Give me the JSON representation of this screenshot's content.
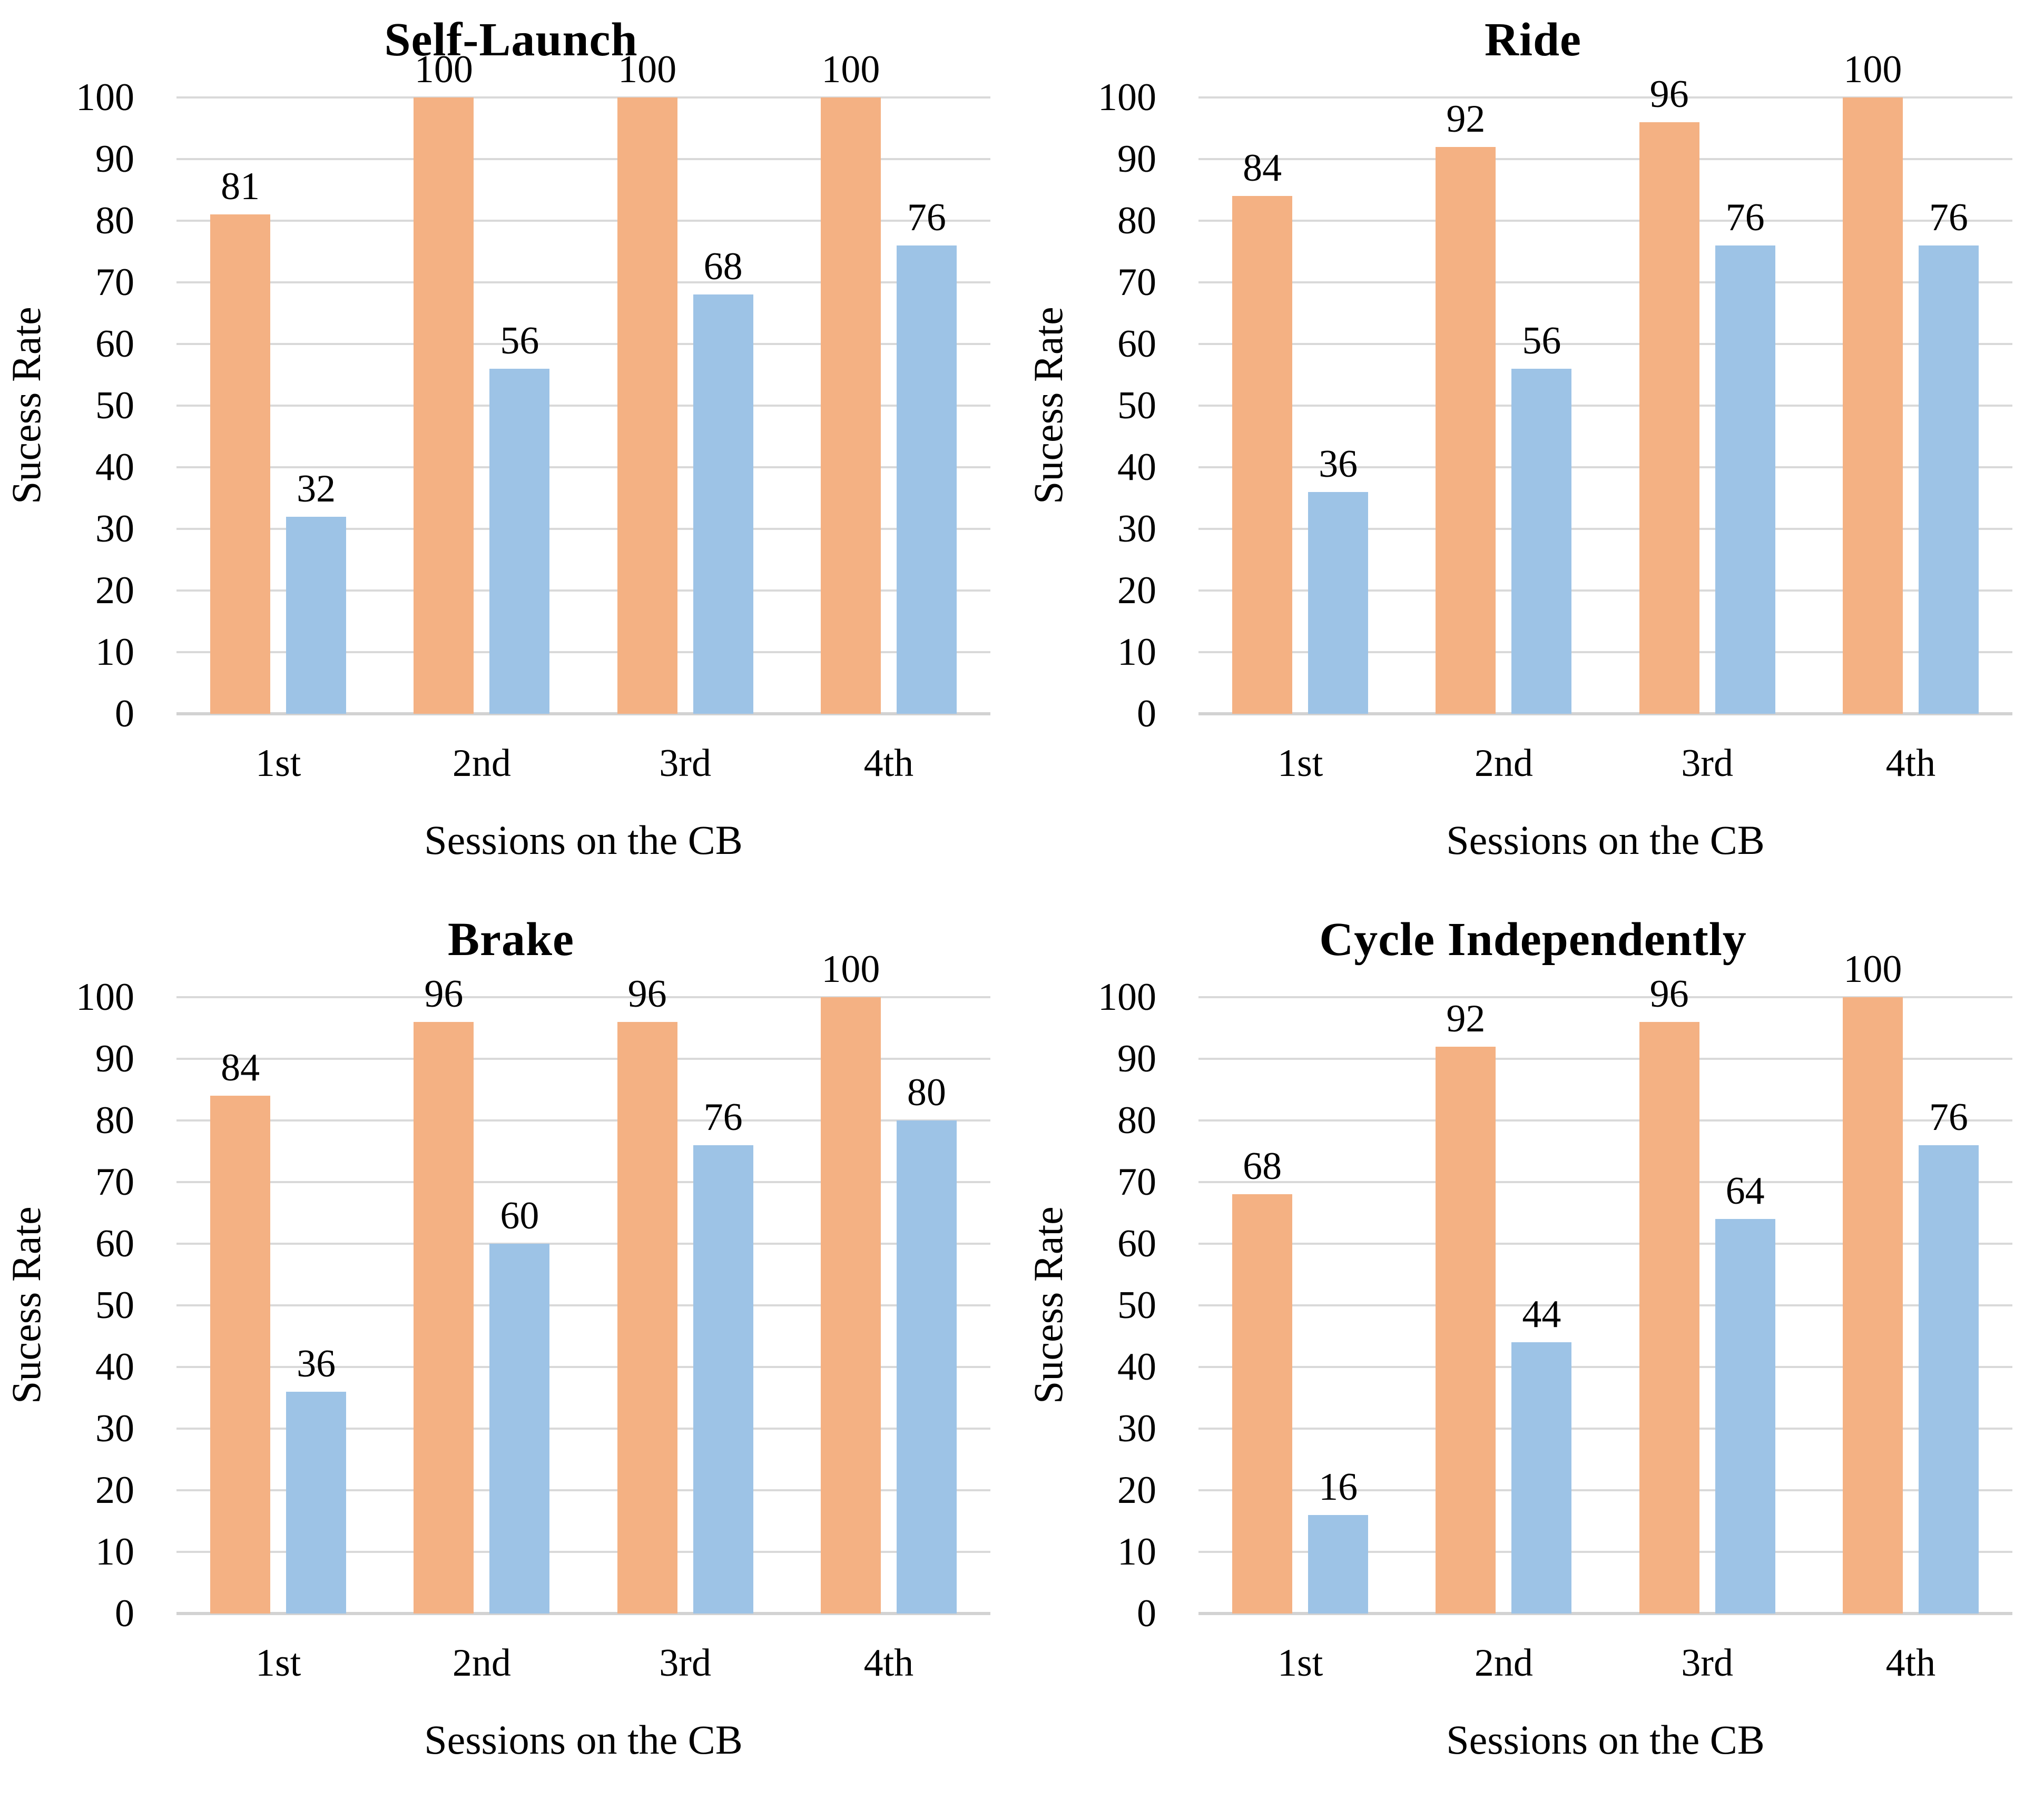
{
  "figure": {
    "background": "#FFFFFF",
    "panels": 4,
    "layout": "2x2-grid"
  },
  "colors": {
    "orange_series": "#F4B183",
    "blue_series": "#9DC3E6",
    "gridline": "#D9D9D9",
    "axis_line": "#D2D2D2",
    "text": "#000000"
  },
  "chart_data": [
    {
      "type": "bar",
      "title": "Self-Launch",
      "categories": [
        "1st",
        "2nd",
        "3rd",
        "4th"
      ],
      "series": [
        {
          "name": "orange",
          "color": "#F4B183",
          "values": [
            81,
            100,
            100,
            100
          ]
        },
        {
          "name": "blue",
          "color": "#9DC3E6",
          "values": [
            32,
            56,
            68,
            76
          ]
        }
      ],
      "xlabel": "Sessions on the CB",
      "ylabel": "Sucess Rate",
      "ylim": [
        0,
        100
      ],
      "yticks": [
        0,
        10,
        20,
        30,
        40,
        50,
        60,
        70,
        80,
        90,
        100
      ],
      "grid": true,
      "legend": "none",
      "data_labels": true
    },
    {
      "type": "bar",
      "title": "Ride",
      "categories": [
        "1st",
        "2nd",
        "3rd",
        "4th"
      ],
      "series": [
        {
          "name": "orange",
          "color": "#F4B183",
          "values": [
            84,
            92,
            96,
            100
          ]
        },
        {
          "name": "blue",
          "color": "#9DC3E6",
          "values": [
            36,
            56,
            76,
            76
          ]
        }
      ],
      "xlabel": "Sessions on the CB",
      "ylabel": "Sucess Rate",
      "ylim": [
        0,
        100
      ],
      "yticks": [
        0,
        10,
        20,
        30,
        40,
        50,
        60,
        70,
        80,
        90,
        100
      ],
      "grid": true,
      "legend": "none",
      "data_labels": true
    },
    {
      "type": "bar",
      "title": "Brake",
      "categories": [
        "1st",
        "2nd",
        "3rd",
        "4th"
      ],
      "series": [
        {
          "name": "orange",
          "color": "#F4B183",
          "values": [
            84,
            96,
            96,
            100
          ]
        },
        {
          "name": "blue",
          "color": "#9DC3E6",
          "values": [
            36,
            60,
            76,
            80
          ]
        }
      ],
      "xlabel": "Sessions on the CB",
      "ylabel": "Sucess Rate",
      "ylim": [
        0,
        100
      ],
      "yticks": [
        0,
        10,
        20,
        30,
        40,
        50,
        60,
        70,
        80,
        90,
        100
      ],
      "grid": true,
      "legend": "none",
      "data_labels": true
    },
    {
      "type": "bar",
      "title": "Cycle Independently",
      "categories": [
        "1st",
        "2nd",
        "3rd",
        "4th"
      ],
      "series": [
        {
          "name": "orange",
          "color": "#F4B183",
          "values": [
            68,
            92,
            96,
            100
          ]
        },
        {
          "name": "blue",
          "color": "#9DC3E6",
          "values": [
            16,
            44,
            64,
            76
          ]
        }
      ],
      "xlabel": "Sessions on the CB",
      "ylabel": "Sucess Rate",
      "ylim": [
        0,
        100
      ],
      "yticks": [
        0,
        10,
        20,
        30,
        40,
        50,
        60,
        70,
        80,
        90,
        100
      ],
      "grid": true,
      "legend": "none",
      "data_labels": true
    }
  ]
}
